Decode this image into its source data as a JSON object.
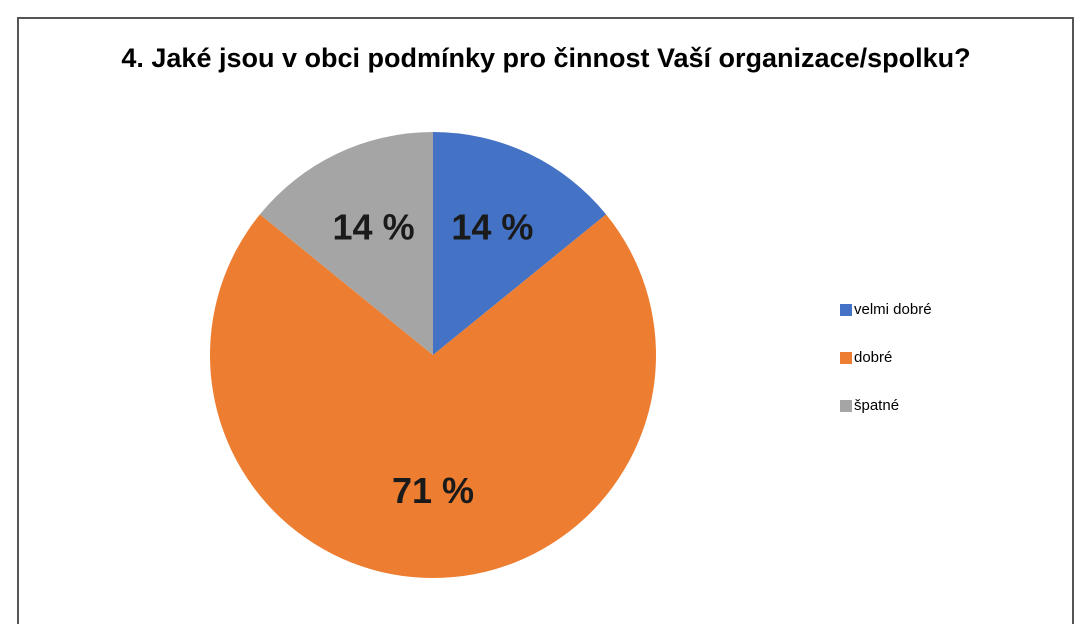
{
  "chart_data": {
    "type": "pie",
    "title": "4. Jaké jsou v obci podmínky pro činnost Vaší organizace/spolku?",
    "categories": [
      "velmi dobré",
      "dobré",
      "špatné"
    ],
    "values": [
      14,
      71,
      14
    ],
    "value_labels": [
      "14 %",
      "71 %",
      "14 %"
    ],
    "colors": [
      "#4472c4",
      "#ed7d31",
      "#a5a5a5"
    ],
    "legend": "right"
  }
}
